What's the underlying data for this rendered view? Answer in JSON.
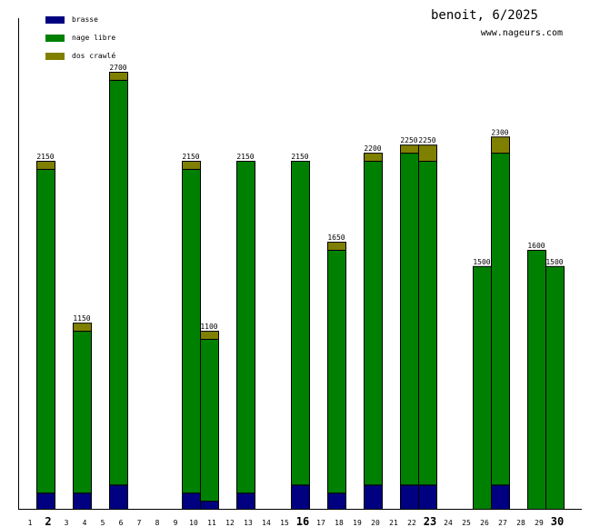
{
  "chart_data": {
    "type": "bar",
    "stacked": true,
    "title": "benoit, 6/2025",
    "subtitle": "www.nageurs.com",
    "xlabel": "",
    "ylabel": "",
    "ylim": [
      0,
      2700
    ],
    "legend_placement": "top-left",
    "categories": [
      "1",
      "2",
      "3",
      "4",
      "5",
      "6",
      "7",
      "8",
      "9",
      "10",
      "11",
      "12",
      "13",
      "14",
      "15",
      "16",
      "17",
      "18",
      "19",
      "20",
      "21",
      "22",
      "23",
      "24",
      "25",
      "26",
      "27",
      "28",
      "29",
      "30"
    ],
    "bold_categories": [
      "2",
      "16",
      "23",
      "30"
    ],
    "series": [
      {
        "name": "brasse",
        "color": "#000080",
        "values": [
          0,
          100,
          0,
          100,
          0,
          150,
          0,
          0,
          0,
          100,
          50,
          0,
          100,
          0,
          0,
          150,
          0,
          100,
          0,
          150,
          0,
          150,
          150,
          0,
          0,
          0,
          150,
          0,
          0,
          0
        ]
      },
      {
        "name": "nage libre",
        "color": "#008000",
        "values": [
          0,
          2000,
          0,
          1000,
          0,
          2500,
          0,
          0,
          0,
          2000,
          1000,
          0,
          2050,
          0,
          0,
          2000,
          0,
          1500,
          0,
          2000,
          0,
          2050,
          2000,
          0,
          0,
          1500,
          2050,
          0,
          1600,
          1500
        ]
      },
      {
        "name": "dos crawlé",
        "color": "#808000",
        "values": [
          0,
          50,
          0,
          50,
          0,
          50,
          0,
          0,
          0,
          50,
          50,
          0,
          0,
          0,
          0,
          0,
          0,
          50,
          0,
          50,
          0,
          50,
          100,
          0,
          0,
          0,
          100,
          0,
          0,
          0
        ]
      }
    ],
    "totals": [
      0,
      2150,
      0,
      1150,
      0,
      2700,
      0,
      0,
      0,
      2150,
      1100,
      0,
      2150,
      0,
      0,
      2150,
      0,
      1650,
      0,
      2200,
      0,
      2250,
      2250,
      0,
      0,
      1500,
      2300,
      0,
      1600,
      1500
    ]
  }
}
